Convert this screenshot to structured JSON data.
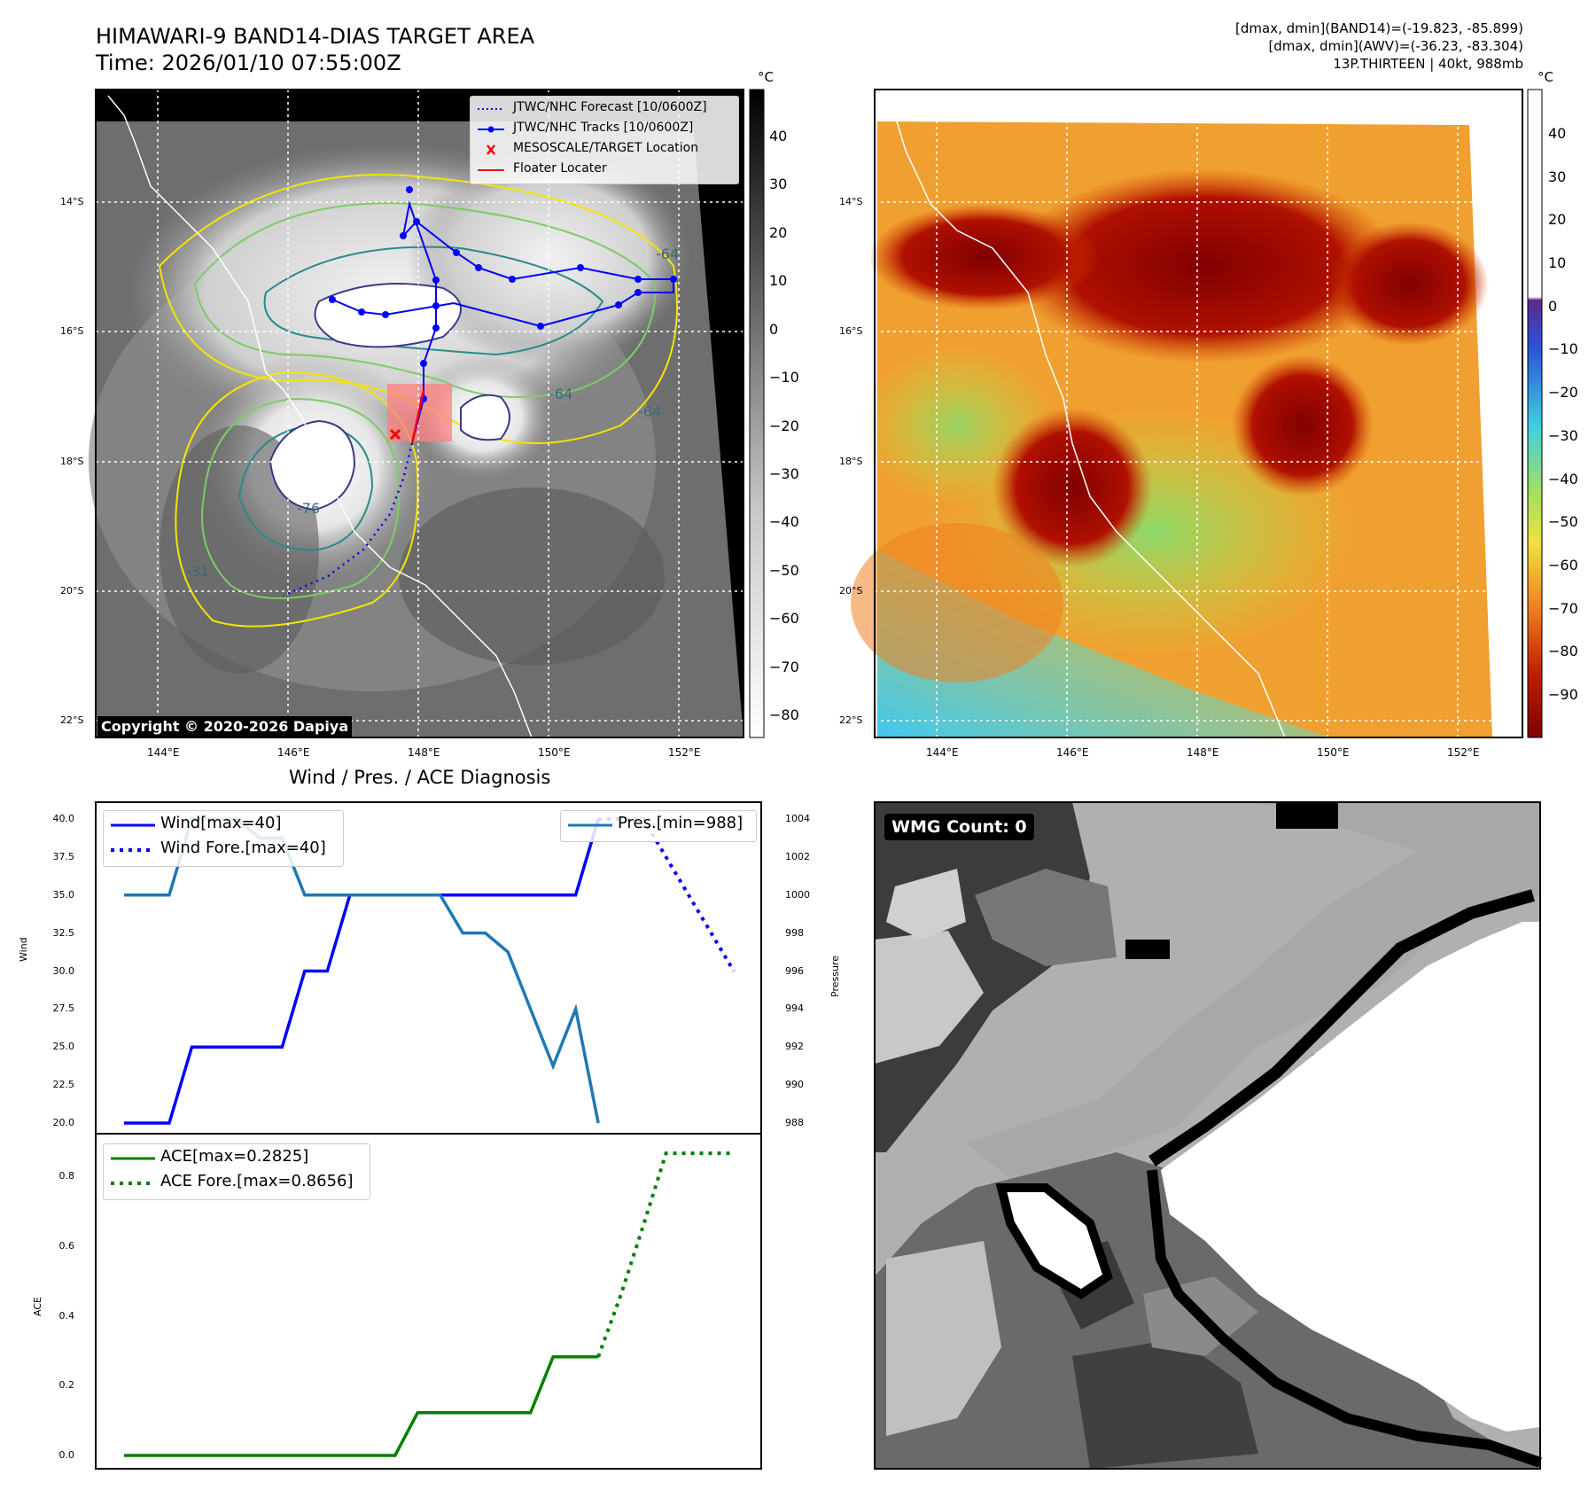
{
  "header": {
    "title": "HIMAWARI-9 BAND14-DIAS TARGET AREA",
    "time": "Time: 2026/01/10 07:55:00Z",
    "stats_band14": "[dmax, dmin](BAND14)=(-19.823, -85.899)",
    "stats_awv": "[dmax, dmin](AWV)=(-36.23, -83.304)",
    "storm": "13P.THIRTEEN | 40kt, 988mb"
  },
  "maps": {
    "lon_ticks": [
      "144°E",
      "146°E",
      "148°E",
      "150°E",
      "152°E"
    ],
    "lat_ticks": [
      "14°S",
      "16°S",
      "18°S",
      "20°S",
      "22°S"
    ],
    "copyright": "Copyright © 2020-2026 Dapiya",
    "left_colorbar": {
      "unit": "°C",
      "ticks": [
        "40",
        "30",
        "20",
        "10",
        "0",
        "−10",
        "−20",
        "−30",
        "−40",
        "−50",
        "−60",
        "−70",
        "−80"
      ]
    },
    "right_colorbar": {
      "unit": "°C",
      "ticks": [
        "40",
        "30",
        "20",
        "10",
        "0",
        "−10",
        "−20",
        "−30",
        "−40",
        "−50",
        "−60",
        "−70",
        "−80",
        "−90"
      ]
    },
    "legend": [
      {
        "label": "JTWC/NHC Forecast [10/0600Z]",
        "style": "dotted",
        "color": "#0000ff"
      },
      {
        "label": "JTWC/NHC Tracks [10/0600Z]",
        "style": "line-dot",
        "color": "#0000ff"
      },
      {
        "label": "MESOSCALE/TARGET Location",
        "style": "x",
        "color": "#ff0000"
      },
      {
        "label": "Floater Locater",
        "style": "line",
        "color": "#ff0000"
      }
    ],
    "contour_labels": [
      "-64",
      "-76",
      "-64",
      "-64",
      "-31",
      "-76",
      "-64",
      "-59"
    ]
  },
  "diagnosis": {
    "title": "Wind / Pres. / ACE Diagnosis",
    "wind_ylabel": "Wind",
    "pressure_ylabel": "Pressure",
    "ace_ylabel": "ACE",
    "wind_ticks": [
      "40.0",
      "37.5",
      "35.0",
      "32.5",
      "30.0",
      "27.5",
      "25.0",
      "22.5",
      "20.0"
    ],
    "pressure_ticks": [
      "1004",
      "1002",
      "1000",
      "998",
      "996",
      "994",
      "992",
      "990",
      "988"
    ],
    "ace_ticks": [
      "0.8",
      "0.6",
      "0.4",
      "0.2",
      "0.0"
    ],
    "legend_wind": "Wind[max=40]",
    "legend_wind_fore": "Wind Fore.[max=40]",
    "legend_pres": "Pres.[min=988]",
    "legend_ace": "ACE[max=0.2825]",
    "legend_ace_fore": "ACE Fore.[max=0.8656]",
    "wmg_label": "WMG Count: 0"
  },
  "colors": {
    "wind": "#0000ff",
    "pressure": "#1f77b4",
    "ace": "#008000"
  },
  "chart_data": [
    {
      "type": "line",
      "title": "Wind / Pres. / ACE Diagnosis",
      "ylabel": "Wind",
      "ylim": [
        20,
        40
      ],
      "x": [
        0,
        1,
        2,
        3,
        4,
        5,
        6,
        7,
        8,
        9,
        10,
        11,
        12,
        13,
        14,
        15,
        16,
        17,
        18,
        19,
        20,
        21,
        22,
        23,
        24,
        25,
        26,
        27
      ],
      "series": [
        {
          "name": "Wind[max=40]",
          "x": [
            0,
            1,
            2,
            3,
            4,
            5,
            6,
            7,
            8,
            9,
            10,
            11,
            12,
            13,
            14,
            15,
            16,
            17,
            18,
            19,
            20,
            21
          ],
          "values": [
            20,
            20,
            20,
            25,
            25,
            25,
            25,
            25,
            30,
            30,
            35,
            35,
            35,
            35,
            35,
            35,
            35,
            35,
            35,
            35,
            35,
            40
          ]
        },
        {
          "name": "Wind Fore.[max=40]",
          "x": [
            21,
            22,
            23,
            24,
            25,
            26,
            27
          ],
          "values": [
            40,
            40,
            40,
            37.5,
            35,
            32.5,
            30
          ]
        },
        {
          "name": "Pres.[min=988]",
          "axis": "right",
          "ylim": [
            988,
            1004
          ],
          "x": [
            0,
            1,
            2,
            3,
            4,
            5,
            6,
            7,
            8,
            9,
            10,
            11,
            12,
            13,
            14,
            15,
            16,
            17,
            18,
            19,
            20,
            21
          ],
          "values": [
            1000,
            1000,
            1000,
            1004,
            1004,
            1004,
            1003,
            1003,
            1000,
            1000,
            1000,
            1000,
            1000,
            1000,
            1000,
            998,
            998,
            997,
            994,
            991,
            994,
            988
          ]
        }
      ]
    },
    {
      "type": "line",
      "ylabel": "ACE",
      "ylim": [
        -0.04,
        0.92
      ],
      "series": [
        {
          "name": "ACE[max=0.2825]",
          "x": [
            0,
            1,
            2,
            3,
            4,
            5,
            6,
            7,
            8,
            9,
            10,
            11,
            12,
            13,
            14,
            15,
            16,
            17,
            18,
            19,
            20,
            21
          ],
          "values": [
            0,
            0,
            0,
            0,
            0,
            0,
            0,
            0,
            0,
            0,
            0,
            0,
            0,
            0.1225,
            0.1225,
            0.1225,
            0.1225,
            0.1225,
            0.1225,
            0.2825,
            0.2825,
            0.2825
          ]
        },
        {
          "name": "ACE Fore.[max=0.8656]",
          "x": [
            21,
            22,
            23,
            24,
            25,
            26,
            27
          ],
          "values": [
            0.2825,
            0.46,
            0.66,
            0.8656,
            0.8656,
            0.8656,
            0.8656
          ]
        }
      ]
    }
  ]
}
